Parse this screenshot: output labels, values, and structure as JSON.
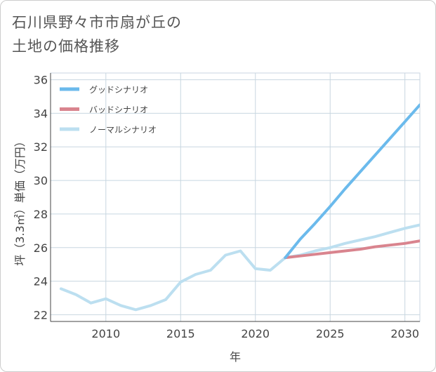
{
  "title_lines": [
    "石川県野々市市扇が丘の",
    "土地の価格推移"
  ],
  "colors": {
    "good": "#6bbaec",
    "bad": "#d9848e",
    "normal": "#bcdff0",
    "grid": "#c8d6e0",
    "axis": "#444444"
  },
  "chart_data": {
    "type": "line",
    "xlabel": "年",
    "ylabel": "坪（3.3㎡）単価（万円）",
    "xlim": [
      2006.3,
      2031
    ],
    "ylim": [
      21.6,
      36.4
    ],
    "xticks": [
      2010,
      2015,
      2020,
      2025,
      2030
    ],
    "yticks": [
      22,
      24,
      26,
      28,
      30,
      32,
      34,
      36
    ],
    "grid": true,
    "legend_position": "top-left",
    "series": [
      {
        "name": "グッドシナリオ",
        "color": "#6bbaec",
        "x": [
          2022,
          2023,
          2024,
          2025,
          2026,
          2027,
          2028,
          2029,
          2030,
          2031
        ],
        "y": [
          25.4,
          26.5,
          27.45,
          28.45,
          29.5,
          30.5,
          31.5,
          32.5,
          33.5,
          34.5
        ]
      },
      {
        "name": "バッドシナリオ",
        "color": "#d9848e",
        "x": [
          2022,
          2023,
          2024,
          2025,
          2026,
          2027,
          2028,
          2029,
          2030,
          2031
        ],
        "y": [
          25.4,
          25.5,
          25.6,
          25.7,
          25.8,
          25.9,
          26.05,
          26.15,
          26.25,
          26.4
        ]
      },
      {
        "name": "ノーマルシナリオ",
        "color": "#bcdff0",
        "x": [
          2007,
          2008,
          2009,
          2010,
          2011,
          2012,
          2013,
          2014,
          2015,
          2016,
          2017,
          2018,
          2019,
          2020,
          2021,
          2022,
          2023,
          2024,
          2025,
          2026,
          2027,
          2028,
          2029,
          2030,
          2031
        ],
        "y": [
          23.55,
          23.2,
          22.7,
          22.95,
          22.55,
          22.3,
          22.55,
          22.9,
          23.95,
          24.4,
          24.65,
          25.55,
          25.8,
          24.75,
          24.65,
          25.4,
          25.55,
          25.8,
          26.0,
          26.25,
          26.45,
          26.65,
          26.9,
          27.15,
          27.35
        ]
      }
    ]
  }
}
